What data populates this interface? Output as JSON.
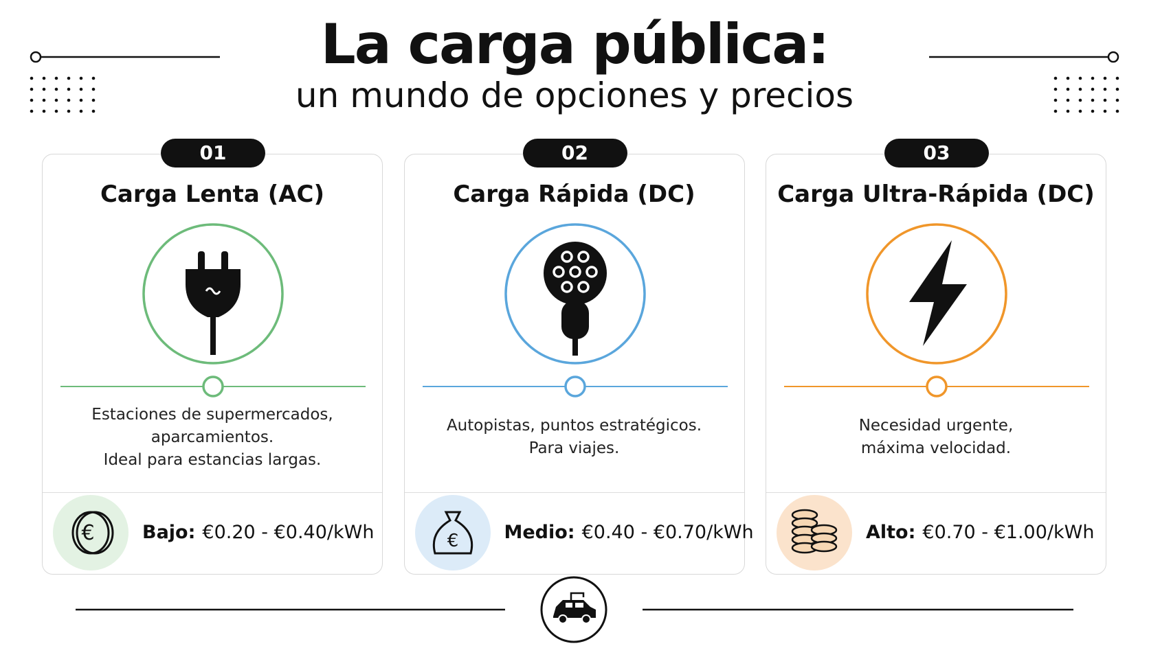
{
  "header": {
    "title": "La carga pública:",
    "subtitle": "un mundo de opciones y precios"
  },
  "cards": [
    {
      "number": "01",
      "title": "Carga Lenta (AC)",
      "description": [
        "Estaciones de supermercados,",
        "aparcamientos.",
        "Ideal para estancias largas."
      ],
      "price_level": "Bajo:",
      "price_range": "€0.20 - €0.40/kWh"
    },
    {
      "number": "02",
      "title": "Carga Rápida (DC)",
      "description": [
        "Autopistas, puntos estratégicos.",
        "Para viajes."
      ],
      "price_level": "Medio:",
      "price_range": "€0.40 - €0.70/kWh"
    },
    {
      "number": "03",
      "title": "Carga Ultra-Rápida (DC)",
      "description": [
        "Necesidad urgente,",
        "máxima velocidad."
      ],
      "price_level": "Alto:",
      "price_range": "€0.70 - €1.00/kWh"
    }
  ]
}
